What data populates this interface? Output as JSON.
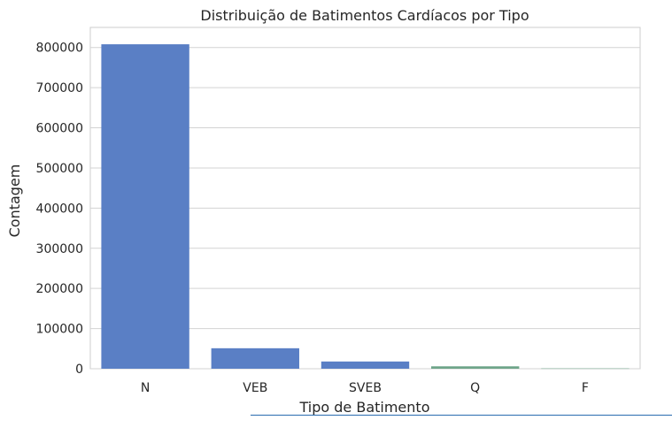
{
  "chart_data": {
    "type": "bar",
    "title": "Distribuição de Batimentos Cardíacos por Tipo",
    "xlabel": "Tipo de Batimento",
    "ylabel": "Contagem",
    "categories": [
      "N",
      "VEB",
      "SVEB",
      "Q",
      "F"
    ],
    "values": [
      808000,
      51000,
      18000,
      6000,
      800
    ],
    "ylim": [
      0,
      850000
    ],
    "yticks": [
      0,
      100000,
      200000,
      300000,
      400000,
      500000,
      600000,
      700000,
      800000
    ],
    "ytick_labels": [
      "0",
      "100000",
      "200000",
      "300000",
      "400000",
      "500000",
      "600000",
      "700000",
      "800000"
    ],
    "grid": true,
    "bar_color": "#5a7fc5",
    "small_bar_color": "#6fa58a",
    "grid_color": "#d3d3d3"
  }
}
